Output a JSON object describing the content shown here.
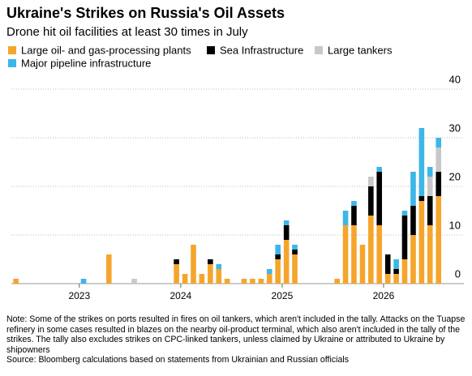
{
  "chart_data": {
    "type": "stacked_bar",
    "title": "Ukraine's Strikes on Russia's Oil Assets",
    "subtitle": "Drone hit oil facilities at least 30 times in July",
    "note": "Note: Some of the strikes on ports resulted in fires on oil tankers, which aren't included in the tally. Attacks on the Tuapse refinery in some cases resulted in blazes on the nearby oil-product terminal, which also aren't included in the tally of the strikes. The tally also excludes strikes on CPC-linked tankers, unless claimed by Ukraine or attributed to Ukraine by shipowners",
    "source": "Source: Bloomberg calculations based on statements from Ukrainian and Russian officials",
    "x": [
      2022.375,
      2022.458,
      2022.542,
      2022.625,
      2022.708,
      2022.792,
      2022.875,
      2022.958,
      2023.042,
      2023.125,
      2023.208,
      2023.292,
      2023.375,
      2023.458,
      2023.542,
      2023.625,
      2023.708,
      2023.792,
      2023.875,
      2023.958,
      2024.042,
      2024.125,
      2024.208,
      2024.292,
      2024.375,
      2024.458,
      2024.542,
      2024.625,
      2024.708,
      2024.792,
      2024.875,
      2024.958,
      2025.042,
      2025.125,
      2025.208,
      2025.292,
      2025.375,
      2025.458,
      2025.542,
      2025.625,
      2025.708,
      2025.792,
      2025.875,
      2025.958,
      2026.042,
      2026.125,
      2026.208,
      2026.292,
      2026.375,
      2026.458,
      2026.542
    ],
    "xlim": [
      2022.33,
      2026.6
    ],
    "xticks": [
      2023,
      2024,
      2025,
      2026
    ],
    "ylim": [
      0,
      40
    ],
    "yticks": [
      0,
      10,
      20,
      30,
      40
    ],
    "grid": true,
    "series": [
      {
        "name": "Large oil- and gas-processing plants",
        "color": "#f5a52c",
        "values": [
          1,
          0,
          0,
          0,
          0,
          0,
          0,
          0,
          0,
          0,
          0,
          6,
          0,
          0,
          0,
          0,
          0,
          0,
          0,
          4,
          2,
          8,
          2,
          4,
          3,
          1,
          0,
          1,
          1,
          1,
          2,
          5,
          9,
          6,
          0,
          0,
          0,
          0,
          1,
          12,
          12,
          8,
          14,
          12,
          2,
          2,
          5,
          10,
          17,
          12,
          18
        ]
      },
      {
        "name": "Sea Infrastructure",
        "color": "#000000",
        "values": [
          0,
          0,
          0,
          0,
          0,
          0,
          0,
          0,
          0,
          0,
          0,
          0,
          0,
          0,
          0,
          0,
          0,
          0,
          0,
          1,
          0,
          0,
          0,
          1,
          0,
          0,
          0,
          0,
          0,
          0,
          0,
          1,
          3,
          1,
          0,
          0,
          0,
          0,
          0,
          0,
          4,
          0,
          6,
          11,
          4,
          1,
          9,
          6,
          1,
          6,
          5
        ]
      },
      {
        "name": "Large tankers",
        "color": "#c8c8c8",
        "values": [
          0,
          0,
          0,
          0,
          0,
          0,
          0,
          0,
          0,
          0,
          0,
          0,
          0,
          0,
          1,
          0,
          0,
          0,
          0,
          0,
          0,
          0,
          0,
          0,
          0,
          0,
          0,
          0,
          0,
          0,
          0,
          0,
          0,
          0,
          0,
          0,
          0,
          0,
          0,
          0,
          0,
          0,
          2,
          0,
          0,
          0,
          0,
          0,
          0,
          4,
          5
        ]
      },
      {
        "name": "Major pipeline infrastructure",
        "color": "#3db6e8",
        "values": [
          0,
          0,
          0,
          0,
          0,
          0,
          0,
          0,
          1,
          0,
          0,
          0,
          0,
          0,
          0,
          0,
          0,
          0,
          0,
          0,
          0,
          0,
          0,
          0,
          1,
          0,
          0,
          0,
          0,
          0,
          1,
          2,
          1,
          1,
          0,
          0,
          0,
          0,
          0,
          3,
          1,
          0,
          0,
          1,
          0,
          2,
          1,
          7,
          14,
          2,
          2
        ]
      }
    ]
  }
}
